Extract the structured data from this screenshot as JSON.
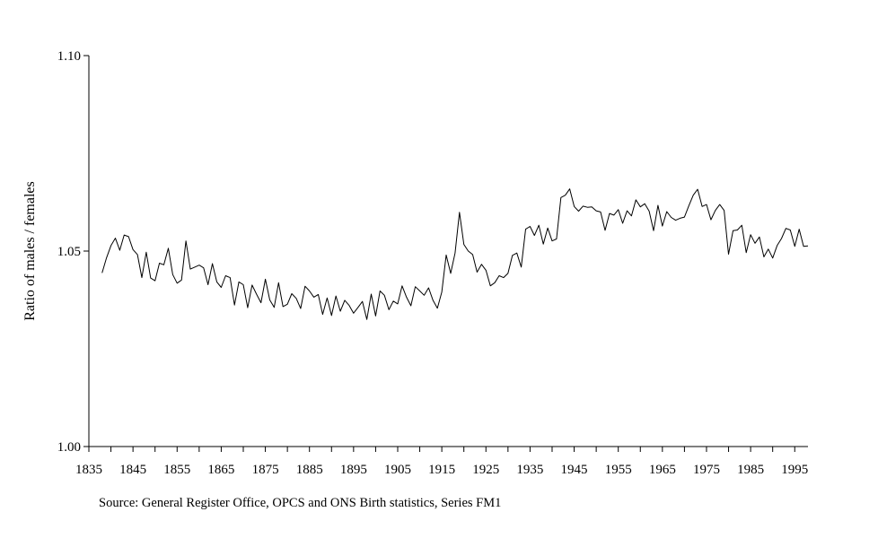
{
  "chart_data": {
    "type": "line",
    "ylabel": "Ratio of males / females",
    "ylim": [
      1.0,
      1.1
    ],
    "yticks": [
      "1.00",
      "1.05",
      "1.10"
    ],
    "xlim": [
      1835,
      1998
    ],
    "xticks": [
      "1835",
      "1845",
      "1855",
      "1865",
      "1875",
      "1885",
      "1895",
      "1905",
      "1915",
      "1925",
      "1935",
      "1945",
      "1955",
      "1965",
      "1975",
      "1985",
      "1995"
    ],
    "grid": false,
    "legend": "none",
    "line_color": "#000000",
    "x_start": 1838,
    "series": [
      {
        "values": [
          1.0444,
          1.0483,
          1.0514,
          1.0533,
          1.0502,
          1.0541,
          1.0537,
          1.0504,
          1.0491,
          1.0432,
          1.0497,
          1.0431,
          1.0424,
          1.0469,
          1.0465,
          1.0507,
          1.044,
          1.0418,
          1.0426,
          1.0526,
          1.0454,
          1.0459,
          1.0464,
          1.0457,
          1.0414,
          1.0468,
          1.0421,
          1.0407,
          1.0437,
          1.0432,
          1.0362,
          1.0421,
          1.0414,
          1.0355,
          1.0413,
          1.039,
          1.0368,
          1.0428,
          1.0375,
          1.0356,
          1.0419,
          1.0358,
          1.0364,
          1.0391,
          1.0379,
          1.0353,
          1.041,
          1.0398,
          1.0382,
          1.0389,
          1.0338,
          1.038,
          1.0335,
          1.0385,
          1.0346,
          1.0374,
          1.0361,
          1.0341,
          1.0356,
          1.0371,
          1.0325,
          1.039,
          1.0334,
          1.0398,
          1.0387,
          1.035,
          1.0372,
          1.0365,
          1.0411,
          1.0382,
          1.036,
          1.0409,
          1.0398,
          1.0387,
          1.0406,
          1.0374,
          1.0354,
          1.0395,
          1.049,
          1.0443,
          1.0495,
          1.0599,
          1.0517,
          1.05,
          1.0491,
          1.0446,
          1.0466,
          1.0451,
          1.0411,
          1.0419,
          1.0437,
          1.0432,
          1.0443,
          1.0489,
          1.0495,
          1.0459,
          1.0556,
          1.0563,
          1.054,
          1.0566,
          1.0518,
          1.0559,
          1.0526,
          1.0531,
          1.0637,
          1.0643,
          1.0659,
          1.0614,
          1.0602,
          1.0615,
          1.0612,
          1.0613,
          1.0603,
          1.06,
          1.0553,
          1.0596,
          1.0592,
          1.0606,
          1.0571,
          1.0603,
          1.059,
          1.0631,
          1.0613,
          1.0621,
          1.0602,
          1.0552,
          1.0617,
          1.0564,
          1.0601,
          1.0586,
          1.0579,
          1.0584,
          1.0587,
          1.0616,
          1.0643,
          1.0658,
          1.0614,
          1.0619,
          1.058,
          1.0604,
          1.0619,
          1.0604,
          1.0492,
          1.0552,
          1.0554,
          1.0566,
          1.0496,
          1.0542,
          1.052,
          1.0536,
          1.0485,
          1.0505,
          1.0482,
          1.0514,
          1.0532,
          1.0558,
          1.0554,
          1.0512,
          1.0556,
          1.0512,
          1.0513
        ]
      }
    ]
  },
  "footer": {
    "source": "Source: General Register Office, OPCS and ONS Birth statistics, Series FM1"
  }
}
